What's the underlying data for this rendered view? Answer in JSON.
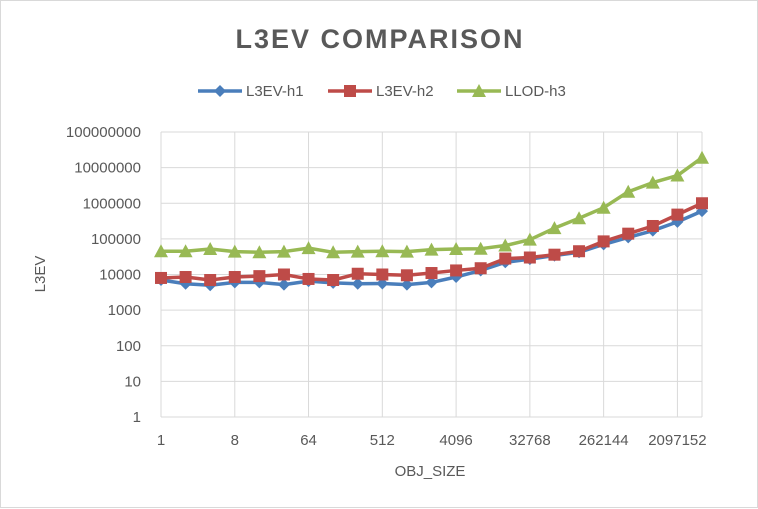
{
  "chart_data": {
    "type": "line",
    "title": "L3EV COMPARISON",
    "xlabel": "OBJ_SIZE",
    "ylabel": "L3EV",
    "y_scale": "log",
    "ylim": [
      1,
      100000000
    ],
    "grid": true,
    "legend_position": "top",
    "y_ticks": [
      "1",
      "10",
      "100",
      "1000",
      "10000",
      "100000",
      "1000000",
      "10000000",
      "100000000"
    ],
    "x_tick_labels": [
      "1",
      "8",
      "64",
      "512",
      "4096",
      "32768",
      "262144",
      "2097152"
    ],
    "x": [
      1,
      2,
      4,
      8,
      16,
      32,
      64,
      128,
      256,
      512,
      1024,
      2048,
      4096,
      8192,
      16384,
      32768,
      65536,
      131072,
      262144,
      524288,
      1048576,
      2097152,
      4194304
    ],
    "series": [
      {
        "name": "L3EV-h1",
        "color": "#4a7ebb",
        "marker": "diamond",
        "values": [
          7000,
          5500,
          5000,
          6000,
          6000,
          5200,
          6500,
          5800,
          5500,
          5600,
          5200,
          6000,
          8500,
          13000,
          22000,
          27000,
          34000,
          42000,
          70000,
          110000,
          170000,
          300000,
          600000
        ]
      },
      {
        "name": "L3EV-h2",
        "color": "#be4b48",
        "marker": "square",
        "values": [
          8000,
          8500,
          7000,
          8500,
          9000,
          10000,
          7500,
          7000,
          10500,
          10000,
          9500,
          11000,
          13000,
          15000,
          28000,
          30000,
          36000,
          45000,
          85000,
          140000,
          230000,
          480000,
          1000000
        ]
      },
      {
        "name": "LLOD-h3",
        "color": "#98b954",
        "marker": "triangle",
        "values": [
          45000,
          45000,
          52000,
          44000,
          42000,
          44000,
          55000,
          42000,
          44000,
          45000,
          44000,
          50000,
          52000,
          53000,
          65000,
          95000,
          200000,
          380000,
          750000,
          2100000,
          3800000,
          6000000,
          19000000
        ]
      }
    ]
  }
}
